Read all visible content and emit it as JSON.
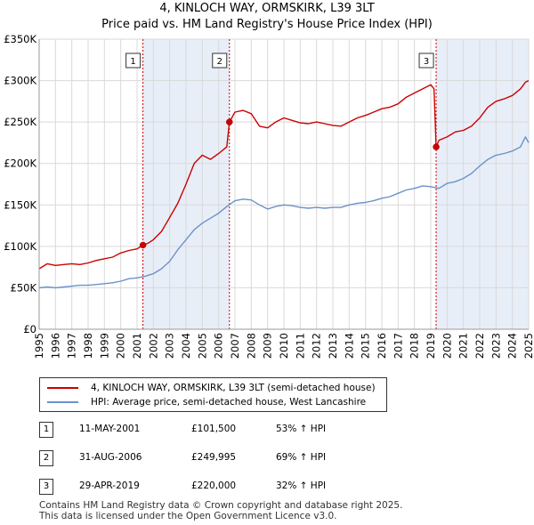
{
  "title_line1": "4, KINLOCH WAY, ORMSKIRK, L39 3LT",
  "title_line2": "Price paid vs. HM Land Registry's House Price Index (HPI)",
  "chart_data": {
    "type": "line",
    "title": "4, KINLOCH WAY, ORMSKIRK, L39 3LT — Price paid vs. HM Land Registry's House Price Index (HPI)",
    "xlabel": "",
    "ylabel": "",
    "xlim": [
      1995,
      2025
    ],
    "ylim": [
      0,
      350000
    ],
    "yticks": [
      0,
      50000,
      100000,
      150000,
      200000,
      250000,
      300000,
      350000
    ],
    "ytick_labels": [
      "£0",
      "£50K",
      "£100K",
      "£150K",
      "£200K",
      "£250K",
      "£300K",
      "£350K"
    ],
    "xticks": [
      1995,
      1996,
      1997,
      1998,
      1999,
      2000,
      2001,
      2002,
      2003,
      2004,
      2005,
      2006,
      2007,
      2008,
      2009,
      2010,
      2011,
      2012,
      2013,
      2014,
      2015,
      2016,
      2017,
      2018,
      2019,
      2020,
      2021,
      2022,
      2023,
      2024,
      2025
    ],
    "grid": true,
    "series": [
      {
        "name": "4, KINLOCH WAY, ORMSKIRK, L39 3LT (semi-detached house)",
        "color": "#cc0000",
        "x": [
          1995.0,
          1995.5,
          1996.0,
          1996.5,
          1997.0,
          1997.5,
          1998.0,
          1998.5,
          1999.0,
          1999.5,
          2000.0,
          2000.5,
          2001.0,
          2001.36,
          2001.7,
          2002.0,
          2002.5,
          2003.0,
          2003.5,
          2004.0,
          2004.5,
          2005.0,
          2005.5,
          2006.0,
          2006.5,
          2006.66,
          2007.0,
          2007.5,
          2008.0,
          2008.5,
          2009.0,
          2009.5,
          2010.0,
          2010.5,
          2011.0,
          2011.5,
          2012.0,
          2012.5,
          2013.0,
          2013.5,
          2014.0,
          2014.5,
          2015.0,
          2015.5,
          2016.0,
          2016.5,
          2017.0,
          2017.5,
          2018.0,
          2018.5,
          2019.0,
          2019.2,
          2019.33,
          2019.5,
          2020.0,
          2020.5,
          2021.0,
          2021.5,
          2022.0,
          2022.5,
          2023.0,
          2023.5,
          2024.0,
          2024.5,
          2024.8,
          2025.0
        ],
        "values": [
          73000,
          79000,
          77000,
          78000,
          79000,
          78000,
          80000,
          83000,
          85000,
          87000,
          92000,
          95000,
          97000,
          101500,
          104000,
          108000,
          118000,
          135000,
          152000,
          175000,
          200000,
          210000,
          205000,
          212000,
          220000,
          249995,
          262000,
          264000,
          260000,
          245000,
          243000,
          250000,
          255000,
          252000,
          249000,
          248000,
          250000,
          248000,
          246000,
          245000,
          250000,
          255000,
          258000,
          262000,
          266000,
          268000,
          272000,
          280000,
          285000,
          290000,
          295000,
          290000,
          220000,
          228000,
          232000,
          238000,
          240000,
          245000,
          255000,
          268000,
          275000,
          278000,
          282000,
          290000,
          298000,
          300000
        ]
      },
      {
        "name": "HPI: Average price, semi-detached house, West Lancashire",
        "color": "#6a93c8",
        "x": [
          1995.0,
          1995.5,
          1996.0,
          1996.5,
          1997.0,
          1997.5,
          1998.0,
          1998.5,
          1999.0,
          1999.5,
          2000.0,
          2000.5,
          2001.0,
          2001.5,
          2002.0,
          2002.5,
          2003.0,
          2003.5,
          2004.0,
          2004.5,
          2005.0,
          2005.5,
          2006.0,
          2006.5,
          2007.0,
          2007.5,
          2008.0,
          2008.5,
          2009.0,
          2009.5,
          2010.0,
          2010.5,
          2011.0,
          2011.5,
          2012.0,
          2012.5,
          2013.0,
          2013.5,
          2014.0,
          2014.5,
          2015.0,
          2015.5,
          2016.0,
          2016.5,
          2017.0,
          2017.5,
          2018.0,
          2018.5,
          2019.0,
          2019.5,
          2020.0,
          2020.5,
          2021.0,
          2021.5,
          2022.0,
          2022.5,
          2023.0,
          2023.5,
          2024.0,
          2024.5,
          2024.8,
          2025.0
        ],
        "values": [
          50000,
          51000,
          50000,
          51000,
          52000,
          53000,
          53000,
          54000,
          55000,
          56000,
          58000,
          61000,
          62000,
          64000,
          67000,
          73000,
          82000,
          96000,
          108000,
          120000,
          128000,
          134000,
          140000,
          148000,
          155000,
          157000,
          156000,
          150000,
          145000,
          148000,
          150000,
          149000,
          147000,
          146000,
          147000,
          146000,
          147000,
          147000,
          150000,
          152000,
          153000,
          155000,
          158000,
          160000,
          164000,
          168000,
          170000,
          173000,
          172000,
          170000,
          176000,
          178000,
          182000,
          188000,
          197000,
          205000,
          210000,
          212000,
          215000,
          220000,
          232000,
          225000
        ]
      }
    ],
    "markers": [
      {
        "label": "1",
        "x": 2001.36,
        "y": 101500
      },
      {
        "label": "2",
        "x": 2006.66,
        "y": 249995
      },
      {
        "label": "3",
        "x": 2019.33,
        "y": 220000
      }
    ],
    "shaded_spans": [
      [
        2001.36,
        2006.66
      ],
      [
        2019.33,
        2025.0
      ]
    ]
  },
  "legend": {
    "items": [
      {
        "label": "4, KINLOCH WAY, ORMSKIRK, L39 3LT (semi-detached house)",
        "color": "#cc0000"
      },
      {
        "label": "HPI: Average price, semi-detached house, West Lancashire",
        "color": "#6a93c8"
      }
    ]
  },
  "sales": [
    {
      "num": "1",
      "date": "11-MAY-2001",
      "price": "£101,500",
      "hpi": "53% ↑ HPI"
    },
    {
      "num": "2",
      "date": "31-AUG-2006",
      "price": "£249,995",
      "hpi": "69% ↑ HPI"
    },
    {
      "num": "3",
      "date": "29-APR-2019",
      "price": "£220,000",
      "hpi": "32% ↑ HPI"
    }
  ],
  "footer": {
    "line1": "Contains HM Land Registry data © Crown copyright and database right 2025.",
    "line2": "This data is licensed under the Open Government Licence v3.0."
  }
}
